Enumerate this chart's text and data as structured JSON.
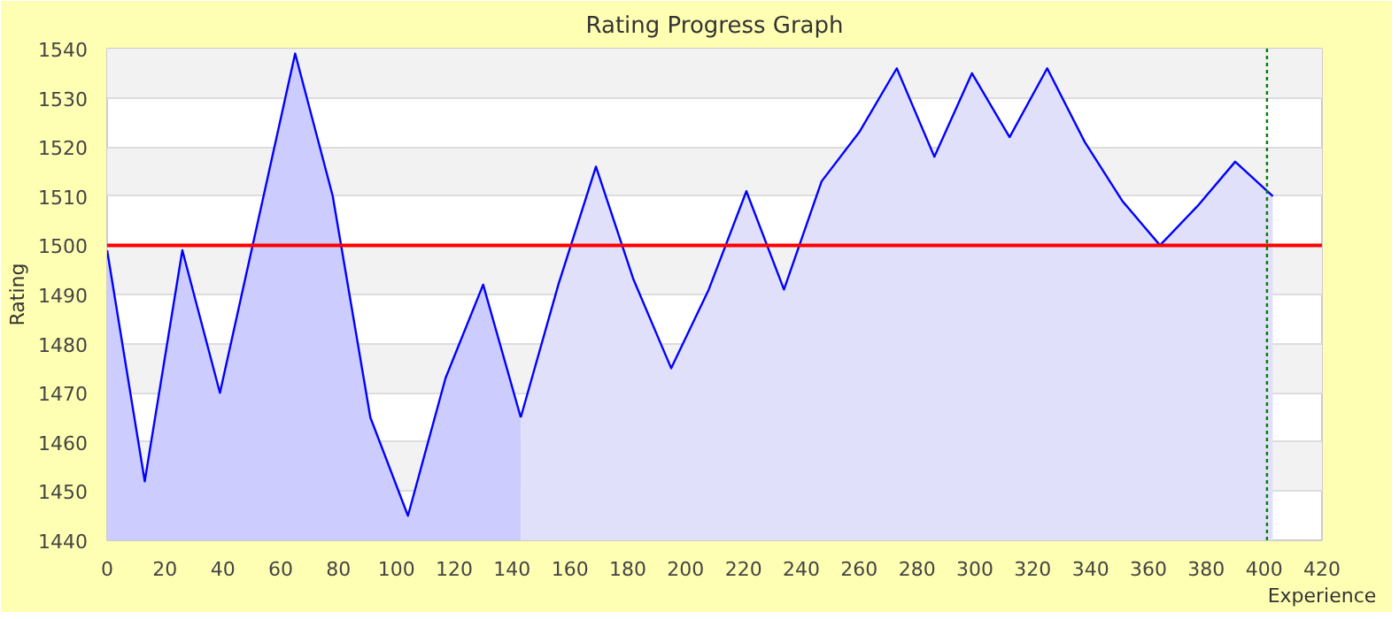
{
  "chart_data": {
    "type": "area",
    "title": "Rating Progress Graph",
    "xlabel": "Experience",
    "ylabel": "Rating",
    "series": [
      {
        "color": "#ccccff",
        "x": [
          0,
          13,
          26,
          39,
          65,
          78,
          91,
          104,
          117,
          130,
          143
        ],
        "values": [
          1499,
          1452,
          1499,
          1470,
          1539,
          1510,
          1465,
          1445,
          1473,
          1492,
          1465
        ]
      },
      {
        "color": "#e0e0fa",
        "x": [
          143,
          156,
          169,
          182,
          195,
          208,
          221,
          234,
          247,
          260,
          273,
          286,
          299,
          312,
          325,
          338,
          351,
          364,
          377,
          390,
          403
        ],
        "values": [
          1465,
          1492,
          1516,
          1493,
          1475,
          1491,
          1511,
          1491,
          1513,
          1523,
          1536,
          1518,
          1535,
          1522,
          1536,
          1521,
          1509,
          1500,
          1508,
          1517,
          1510
        ]
      }
    ],
    "ref_lines": [
      {
        "axis": "y",
        "value": 1500,
        "color": "#ff0000",
        "line_style": "solid"
      },
      {
        "axis": "x",
        "value": 401,
        "color": "#008000",
        "line_style": "dotted"
      }
    ],
    "xlim": [
      0,
      420
    ],
    "ylim": [
      1440,
      1540
    ],
    "xticks": [
      0,
      20,
      40,
      60,
      80,
      100,
      120,
      140,
      160,
      180,
      200,
      220,
      240,
      260,
      280,
      300,
      320,
      340,
      360,
      380,
      400,
      420
    ],
    "yticks": [
      1440,
      1450,
      1460,
      1470,
      1480,
      1490,
      1500,
      1510,
      1520,
      1530,
      1540
    ],
    "grid": "y"
  }
}
